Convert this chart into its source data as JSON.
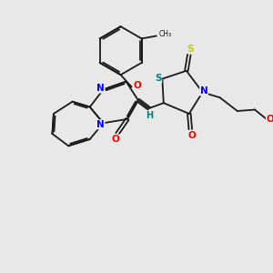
{
  "background_color": "#e8e8e8",
  "figsize": [
    3.0,
    3.0
  ],
  "dpi": 100,
  "bond_color": "#1a1a1a",
  "atom_colors": {
    "N": "#0000ff",
    "O": "#ff0000",
    "S_yellow": "#cccc00",
    "S_teal": "#008080",
    "H": "#008080"
  },
  "lw": 1.3,
  "xlim": [
    0,
    10
  ],
  "ylim": [
    0,
    10
  ]
}
